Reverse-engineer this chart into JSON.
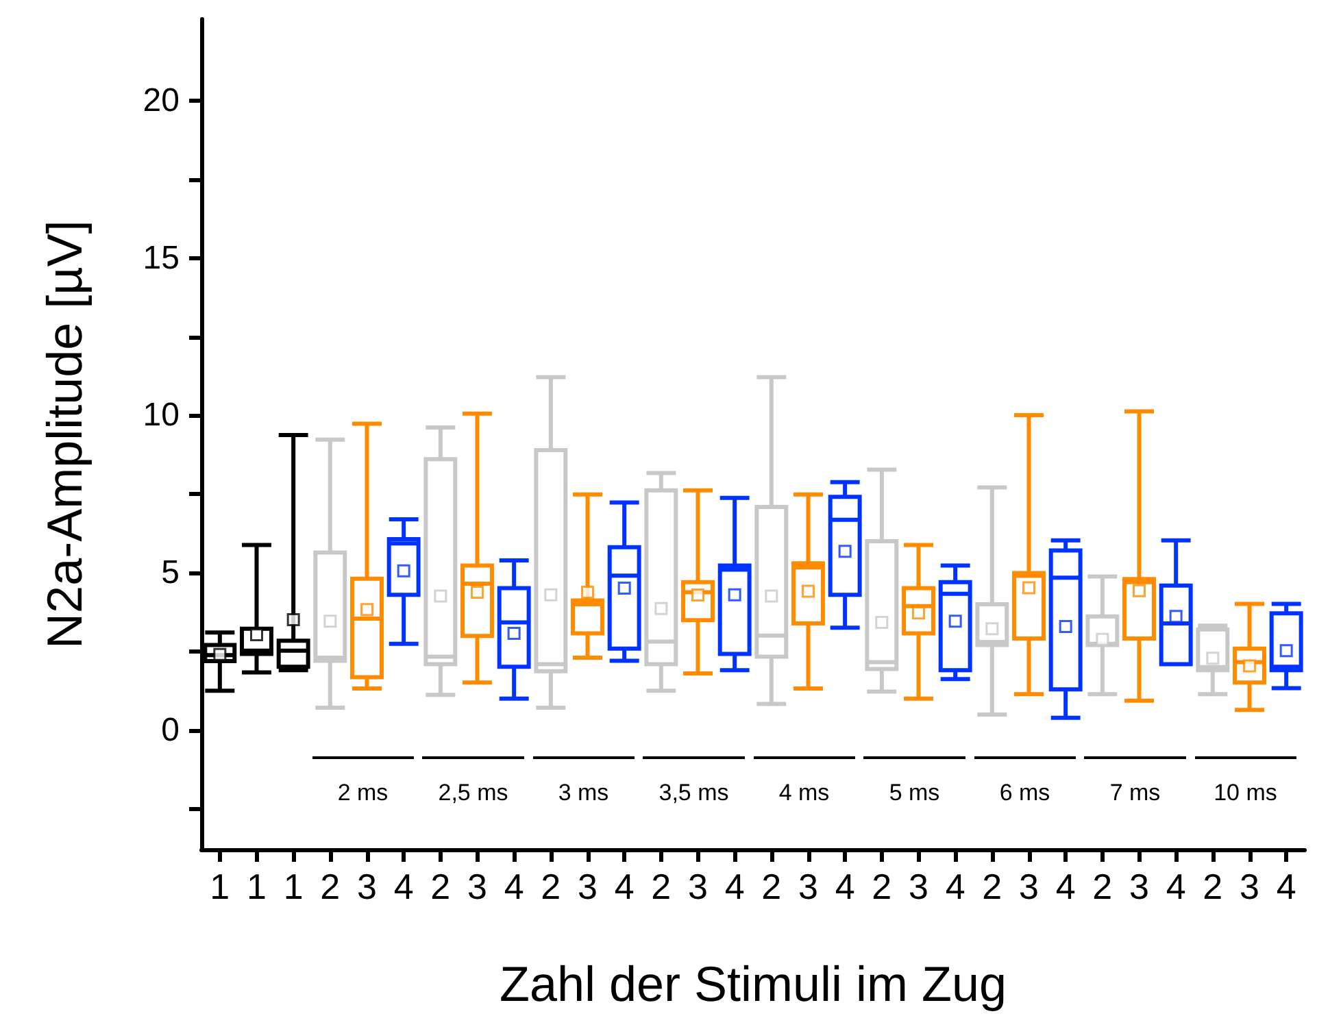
{
  "chart_data": {
    "type": "box",
    "xlabel": "Zahl der Stimuli im Zug",
    "ylabel": "N2a-Amplitude [µV]",
    "categories": [
      "1",
      "1",
      "1",
      "2",
      "3",
      "4",
      "2",
      "3",
      "4",
      "2",
      "3",
      "4",
      "2",
      "3",
      "4",
      "2",
      "3",
      "4",
      "2",
      "3",
      "4",
      "2",
      "3",
      "4",
      "2",
      "3",
      "4",
      "2",
      "3",
      "4"
    ],
    "ylim": [
      -3.8,
      22.6
    ],
    "yticks": [
      {
        "value": -2.5,
        "label": null
      },
      0,
      {
        "value": 2.5,
        "label": null
      },
      5,
      {
        "value": 7.5,
        "label": null
      },
      10,
      {
        "value": 12.5,
        "label": null
      },
      15,
      {
        "value": 17.5,
        "label": null
      },
      20
    ],
    "grid": false,
    "annotations": [
      "2 ms",
      "2,5 ms",
      "3 ms",
      "3,5 ms",
      "4 ms",
      "5 ms",
      "6 ms",
      "7 ms",
      "10 ms"
    ],
    "series": [
      {
        "color": "#000000",
        "boxes": [
          {
            "low": 1.25,
            "q1": 2.19,
            "median": 2.38,
            "q3": 2.7,
            "high": 3.1,
            "mean": 2.4
          },
          {
            "low": 1.83,
            "q1": 2.42,
            "median": 2.52,
            "q3": 3.22,
            "high": 5.88,
            "mean": 3.03
          },
          {
            "low": 1.9,
            "q1": 2.01,
            "median": 2.52,
            "q3": 2.84,
            "high": 9.38,
            "mean": 3.51
          },
          null,
          null,
          null,
          null,
          null,
          null,
          null,
          null,
          null,
          null,
          null,
          null,
          null,
          null,
          null,
          null,
          null,
          null,
          null,
          null,
          null,
          null,
          null,
          null,
          null,
          null,
          null
        ]
      },
      {
        "color": "#c8c8c8",
        "boxes": [
          null,
          null,
          null,
          {
            "low": 0.71,
            "q1": 2.2,
            "median": 2.3,
            "q3": 5.64,
            "high": 9.23,
            "mean": 3.46
          },
          null,
          null,
          {
            "low": 1.12,
            "q1": 2.09,
            "median": 2.33,
            "q3": 8.61,
            "high": 9.62,
            "mean": 4.26
          },
          null,
          null,
          {
            "low": 0.71,
            "q1": 1.87,
            "median": 2.09,
            "q3": 8.9,
            "high": 11.22,
            "mean": 4.3
          },
          null,
          null,
          {
            "low": 1.25,
            "q1": 2.09,
            "median": 2.81,
            "q3": 7.62,
            "high": 8.17,
            "mean": 3.86
          },
          null,
          null,
          {
            "low": 0.83,
            "q1": 2.33,
            "median": 3.0,
            "q3": 7.09,
            "high": 11.22,
            "mean": 4.26
          },
          null,
          null,
          {
            "low": 1.22,
            "q1": 1.94,
            "median": 2.16,
            "q3": 6.0,
            "high": 8.28,
            "mean": 3.42
          },
          null,
          null,
          {
            "low": 0.49,
            "q1": 2.7,
            "median": 2.8,
            "q3": 4.0,
            "high": 7.71,
            "mean": 3.22
          },
          null,
          null,
          {
            "low": 1.14,
            "q1": 2.7,
            "median": 2.74,
            "q3": 3.61,
            "high": 4.88,
            "mean": 2.88
          },
          null,
          null,
          {
            "low": 1.14,
            "q1": 1.9,
            "median": 2.0,
            "q3": 3.2,
            "high": 3.32,
            "mean": 2.28
          },
          null,
          null
        ]
      },
      {
        "color": "#ff8c00",
        "boxes": [
          null,
          null,
          null,
          null,
          {
            "low": 1.32,
            "q1": 1.68,
            "median": 3.54,
            "q3": 4.81,
            "high": 9.74,
            "mean": 3.83
          },
          null,
          null,
          {
            "low": 1.51,
            "q1": 2.99,
            "median": 4.65,
            "q3": 5.23,
            "high": 10.06,
            "mean": 4.38
          },
          null,
          null,
          {
            "low": 2.3,
            "q1": 3.07,
            "median": 4.0,
            "q3": 4.12,
            "high": 7.49,
            "mean": 4.38
          },
          null,
          null,
          {
            "low": 1.8,
            "q1": 3.49,
            "median": 4.38,
            "q3": 4.7,
            "high": 7.62,
            "mean": 4.29
          },
          null,
          null,
          {
            "low": 1.32,
            "q1": 3.39,
            "median": 5.17,
            "q3": 5.3,
            "high": 7.49,
            "mean": 4.41
          },
          null,
          null,
          {
            "low": 1.0,
            "q1": 3.07,
            "median": 3.94,
            "q3": 4.51,
            "high": 5.88,
            "mean": 3.72
          },
          null,
          null,
          {
            "low": 1.14,
            "q1": 2.91,
            "median": 4.9,
            "q3": 4.99,
            "high": 10.01,
            "mean": 4.52
          },
          null,
          null,
          {
            "low": 0.93,
            "q1": 2.91,
            "median": 4.7,
            "q3": 4.8,
            "high": 10.13,
            "mean": 4.43
          },
          null,
          null,
          {
            "low": 0.64,
            "q1": 1.51,
            "median": 2.16,
            "q3": 2.59,
            "high": 4.01,
            "mean": 2.04
          },
          null
        ]
      },
      {
        "color": "#0033ff",
        "boxes": [
          null,
          null,
          null,
          null,
          null,
          {
            "low": 2.74,
            "q1": 4.3,
            "median": 5.93,
            "q3": 6.07,
            "high": 6.7,
            "mean": 5.06
          },
          null,
          null,
          {
            "low": 1.0,
            "q1": 2.01,
            "median": 3.42,
            "q3": 4.51,
            "high": 5.39,
            "mean": 3.07
          },
          null,
          null,
          {
            "low": 2.2,
            "q1": 2.59,
            "median": 4.91,
            "q3": 5.81,
            "high": 7.23,
            "mean": 4.51
          },
          null,
          null,
          {
            "low": 1.9,
            "q1": 2.42,
            "median": 5.1,
            "q3": 5.23,
            "high": 7.38,
            "mean": 4.3
          },
          null,
          null,
          {
            "low": 3.25,
            "q1": 4.3,
            "median": 6.68,
            "q3": 7.41,
            "high": 7.88,
            "mean": 5.68
          },
          null,
          null,
          {
            "low": 1.62,
            "q1": 1.9,
            "median": 4.33,
            "q3": 4.7,
            "high": 5.23,
            "mean": 3.46
          },
          null,
          null,
          {
            "low": 0.39,
            "q1": 1.29,
            "median": 4.84,
            "q3": 5.71,
            "high": 6.03,
            "mean": 3.29
          },
          null,
          null,
          {
            "low": 2.09,
            "q1": 2.09,
            "median": 3.39,
            "q3": 4.59,
            "high": 6.03,
            "mean": 3.61
          },
          null,
          null,
          {
            "low": 1.33,
            "q1": 1.9,
            "median": 2.01,
            "q3": 3.71,
            "high": 4.01,
            "mean": 2.52
          }
        ]
      }
    ]
  }
}
